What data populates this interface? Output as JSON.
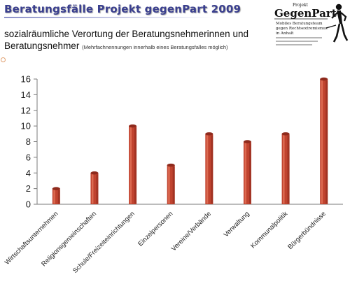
{
  "header": {
    "title": "Beratungsfälle Projekt gegenPart 2009",
    "subtitle": "sozialräumliche Verortung der Beratungsnehmerinnen und Beratungsnehmer",
    "subtitle_note": "(Mehrfachnennungen innerhalb eines Beratungsfalles möglich)"
  },
  "logo": {
    "small_label": "Projekt",
    "name": "GegenPart",
    "line1": "Mobiles Beratungsteam",
    "line2": "gegen Rechtsextremismus",
    "line3": "in Anhalt"
  },
  "chart_data": {
    "type": "bar",
    "title": "",
    "xlabel": "",
    "ylabel": "",
    "categories": [
      "Wirtschaftsunternehmen",
      "Religionsgemeinschaften",
      "Schule/Freizeiteinrichtungen",
      "Einzelpersonen",
      "Vereine/Verbände",
      "Verwaltung",
      "Kommunalpolitik",
      "Bürgerbündnisse"
    ],
    "values": [
      2,
      4,
      10,
      5,
      9,
      8,
      9,
      16
    ],
    "ylim": [
      0,
      16
    ],
    "yticks": [
      "0",
      "2",
      "4",
      "6",
      "8",
      "10",
      "12",
      "14",
      "16"
    ],
    "grid": false,
    "legend": "none",
    "bar_color": "#c0432f",
    "bar_highlight": "#e87a5f",
    "bar_shadow": "#8e2a1c"
  }
}
